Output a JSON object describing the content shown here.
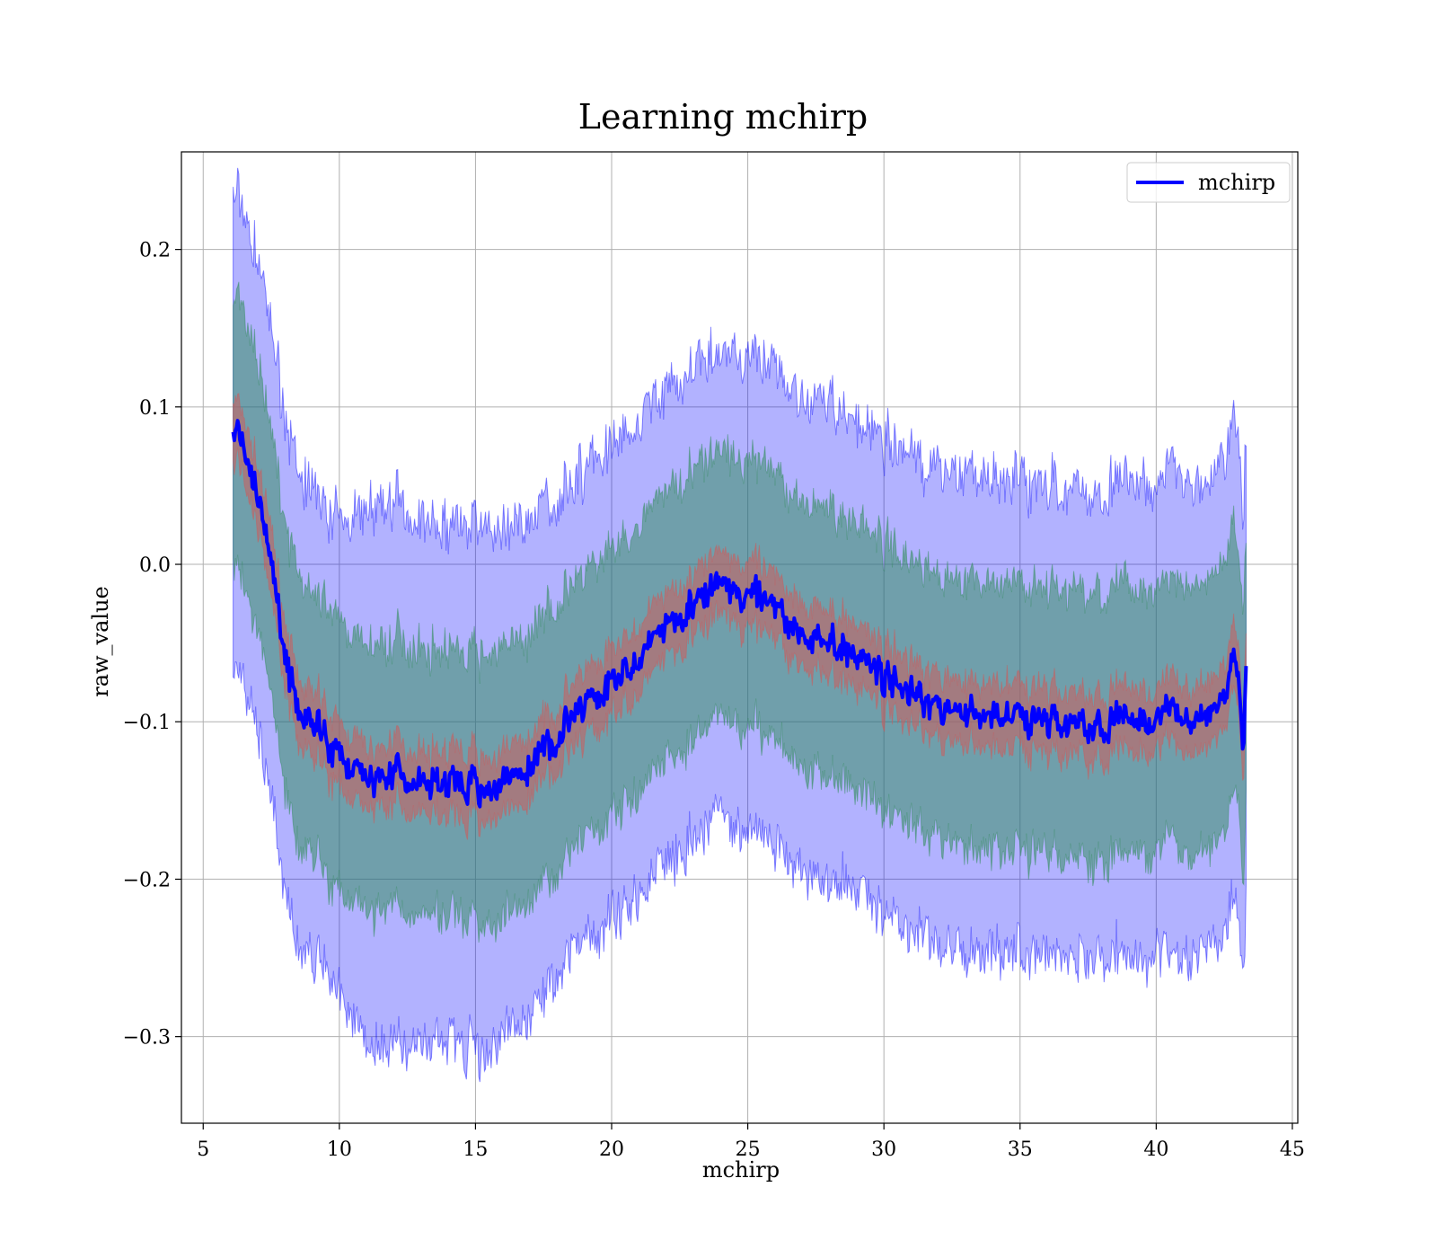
{
  "chart_data": {
    "type": "line",
    "title": "Learning mchirp",
    "xlabel": "mchirp",
    "ylabel": "raw_value",
    "xlim": [
      4.2,
      45.2
    ],
    "ylim": [
      -0.355,
      0.262
    ],
    "xticks": [
      5,
      10,
      15,
      20,
      25,
      30,
      35,
      40,
      45
    ],
    "xtick_labels": [
      "5",
      "10",
      "15",
      "20",
      "25",
      "30",
      "35",
      "40",
      "45"
    ],
    "yticks": [
      -0.3,
      -0.2,
      -0.1,
      0.0,
      0.1,
      0.2
    ],
    "ytick_labels": [
      "−0.3",
      "−0.2",
      "−0.1",
      "0.0",
      "0.1",
      "0.2"
    ],
    "grid": true,
    "legend": {
      "position": "top-right",
      "entries": [
        "mchirp"
      ]
    },
    "colors": {
      "line": "#0000ff",
      "band_outer": "#0000ff",
      "band_mid": "#2e8b57",
      "band_inner": "#cd5c5c"
    },
    "series": [
      {
        "name": "mchirp",
        "x": [
          6.1,
          6.5,
          7.0,
          7.5,
          8.0,
          8.5,
          9.0,
          9.5,
          10.0,
          10.5,
          11.0,
          11.5,
          12.0,
          12.5,
          13.0,
          13.5,
          14.0,
          14.5,
          15.0,
          15.5,
          16.0,
          16.5,
          17.0,
          17.5,
          18.0,
          18.5,
          19.0,
          19.5,
          20.0,
          20.5,
          21.0,
          21.5,
          22.0,
          22.5,
          23.0,
          23.5,
          24.0,
          24.5,
          25.0,
          25.5,
          26.0,
          26.5,
          27.0,
          27.5,
          28.0,
          28.5,
          29.0,
          29.5,
          30.0,
          30.5,
          31.0,
          31.5,
          32.0,
          32.5,
          33.0,
          33.5,
          34.0,
          34.5,
          35.0,
          35.5,
          36.0,
          36.5,
          37.0,
          37.5,
          38.0,
          38.5,
          39.0,
          39.5,
          40.0,
          40.5,
          41.0,
          41.5,
          42.0,
          42.5,
          42.8,
          43.0,
          43.2,
          43.3
        ],
        "y": [
          0.085,
          0.075,
          0.04,
          0.0,
          -0.05,
          -0.1,
          -0.105,
          -0.11,
          -0.12,
          -0.13,
          -0.14,
          -0.14,
          -0.13,
          -0.135,
          -0.14,
          -0.14,
          -0.14,
          -0.14,
          -0.14,
          -0.14,
          -0.14,
          -0.135,
          -0.13,
          -0.12,
          -0.11,
          -0.1,
          -0.09,
          -0.085,
          -0.075,
          -0.07,
          -0.06,
          -0.045,
          -0.04,
          -0.03,
          -0.025,
          -0.02,
          -0.015,
          -0.015,
          -0.02,
          -0.025,
          -0.03,
          -0.035,
          -0.04,
          -0.045,
          -0.05,
          -0.055,
          -0.06,
          -0.065,
          -0.07,
          -0.075,
          -0.08,
          -0.085,
          -0.09,
          -0.09,
          -0.095,
          -0.095,
          -0.1,
          -0.1,
          -0.095,
          -0.1,
          -0.1,
          -0.105,
          -0.1,
          -0.105,
          -0.105,
          -0.1,
          -0.1,
          -0.1,
          -0.095,
          -0.095,
          -0.1,
          -0.1,
          -0.095,
          -0.08,
          -0.065,
          -0.07,
          -0.12,
          -0.06
        ],
        "band_inner_halfwidth": [
          0.02,
          0.02,
          0.02,
          0.02,
          0.02,
          0.02,
          0.02,
          0.02,
          0.02,
          0.02,
          0.02,
          0.02,
          0.02,
          0.02,
          0.02,
          0.02,
          0.02,
          0.02,
          0.02,
          0.02,
          0.02,
          0.02,
          0.02,
          0.02,
          0.02,
          0.02,
          0.02,
          0.02,
          0.02,
          0.02,
          0.02,
          0.02,
          0.02,
          0.02,
          0.02,
          0.02,
          0.02,
          0.02,
          0.02,
          0.02,
          0.02,
          0.02,
          0.02,
          0.02,
          0.02,
          0.02,
          0.02,
          0.02,
          0.02,
          0.02,
          0.02,
          0.02,
          0.02,
          0.02,
          0.02,
          0.02,
          0.02,
          0.02,
          0.02,
          0.02,
          0.02,
          0.02,
          0.02,
          0.02,
          0.02,
          0.02,
          0.02,
          0.02,
          0.02,
          0.02,
          0.02,
          0.02,
          0.02,
          0.02,
          0.02,
          0.02,
          0.02,
          0.02
        ],
        "band_mid_halfwidth": [
          0.085,
          0.085,
          0.085,
          0.085,
          0.085,
          0.085,
          0.085,
          0.085,
          0.085,
          0.085,
          0.085,
          0.085,
          0.085,
          0.085,
          0.085,
          0.085,
          0.085,
          0.085,
          0.085,
          0.085,
          0.085,
          0.085,
          0.085,
          0.085,
          0.085,
          0.085,
          0.085,
          0.085,
          0.085,
          0.085,
          0.085,
          0.085,
          0.085,
          0.085,
          0.085,
          0.085,
          0.085,
          0.085,
          0.085,
          0.085,
          0.085,
          0.085,
          0.085,
          0.085,
          0.085,
          0.085,
          0.085,
          0.085,
          0.085,
          0.085,
          0.085,
          0.085,
          0.085,
          0.085,
          0.085,
          0.085,
          0.085,
          0.085,
          0.085,
          0.085,
          0.085,
          0.085,
          0.085,
          0.085,
          0.085,
          0.085,
          0.085,
          0.085,
          0.085,
          0.085,
          0.085,
          0.085,
          0.085,
          0.085,
          0.085,
          0.085,
          0.085,
          0.085
        ],
        "band_outer_halfwidth": [
          0.15,
          0.15,
          0.15,
          0.15,
          0.15,
          0.15,
          0.15,
          0.15,
          0.15,
          0.16,
          0.17,
          0.17,
          0.17,
          0.17,
          0.165,
          0.165,
          0.165,
          0.165,
          0.165,
          0.165,
          0.16,
          0.16,
          0.155,
          0.155,
          0.15,
          0.15,
          0.15,
          0.15,
          0.15,
          0.15,
          0.15,
          0.15,
          0.15,
          0.15,
          0.15,
          0.15,
          0.15,
          0.15,
          0.15,
          0.15,
          0.15,
          0.15,
          0.15,
          0.15,
          0.15,
          0.15,
          0.15,
          0.15,
          0.15,
          0.15,
          0.15,
          0.15,
          0.15,
          0.15,
          0.15,
          0.15,
          0.15,
          0.15,
          0.15,
          0.15,
          0.15,
          0.15,
          0.15,
          0.15,
          0.15,
          0.15,
          0.15,
          0.15,
          0.15,
          0.15,
          0.15,
          0.15,
          0.15,
          0.15,
          0.15,
          0.15,
          0.15,
          0.15
        ]
      }
    ]
  }
}
